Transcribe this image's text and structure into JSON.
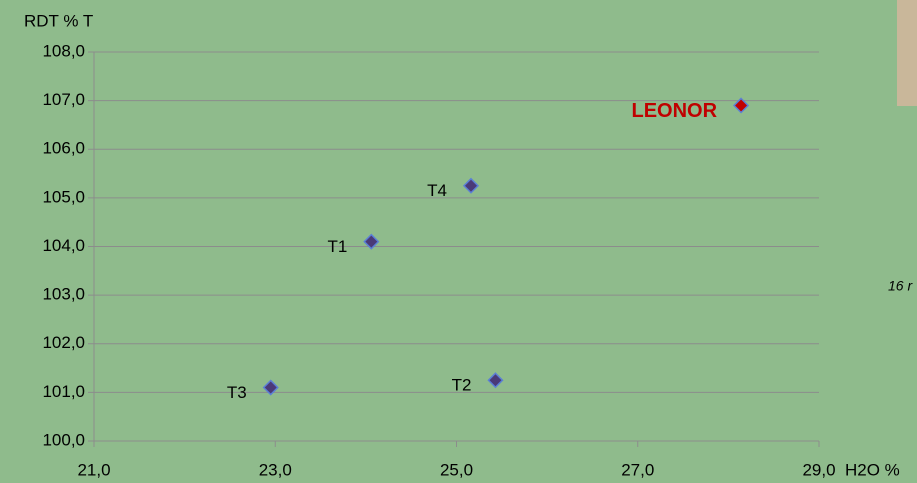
{
  "chart_data": {
    "type": "scatter",
    "y_label": "RDT % T",
    "x_label": "H2O %",
    "annotation": "16 r",
    "xlim": [
      21.0,
      29.0
    ],
    "ylim": [
      100.0,
      108.0
    ],
    "xticks": [
      {
        "value": 21.0,
        "label": "21,0"
      },
      {
        "value": 23.0,
        "label": "23,0"
      },
      {
        "value": 25.0,
        "label": "25,0"
      },
      {
        "value": 27.0,
        "label": "27,0"
      },
      {
        "value": 29.0,
        "label": "29,0"
      }
    ],
    "yticks": [
      {
        "value": 100.0,
        "label": "100,0"
      },
      {
        "value": 101.0,
        "label": "101,0"
      },
      {
        "value": 102.0,
        "label": "102,0"
      },
      {
        "value": 103.0,
        "label": "103,0"
      },
      {
        "value": 104.0,
        "label": "104,0"
      },
      {
        "value": 105.0,
        "label": "105,0"
      },
      {
        "value": 106.0,
        "label": "106,0"
      },
      {
        "value": 107.0,
        "label": "107,0"
      },
      {
        "value": 108.0,
        "label": "108,0"
      }
    ],
    "grid": true,
    "point_labels": [
      "T3",
      "T1",
      "T4",
      "T2",
      "LEONOR"
    ],
    "x": [
      22.95,
      24.06,
      25.16,
      25.43,
      28.14
    ],
    "values": [
      101.1,
      104.1,
      105.25,
      101.25,
      106.9
    ],
    "colors": [
      "#4a3a78",
      "#4a3a78",
      "#4a3a78",
      "#4a3a78",
      "#c00000"
    ],
    "label_colors": [
      "#000000",
      "#000000",
      "#000000",
      "#000000",
      "#c00000"
    ]
  }
}
